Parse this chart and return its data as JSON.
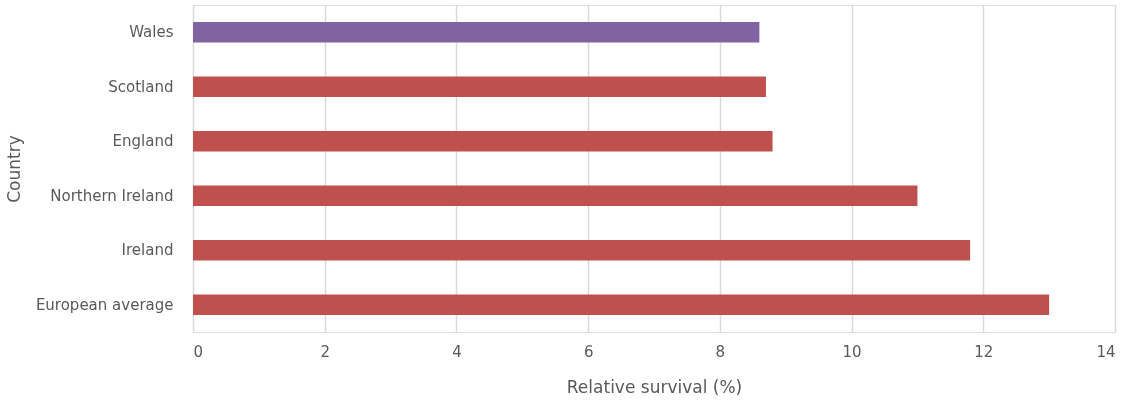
{
  "chart_data": {
    "type": "bar",
    "orientation": "horizontal",
    "xlabel": "Relative survival (%)",
    "ylabel": "Country",
    "categories": [
      "Wales",
      "Scotland",
      "England",
      "Northern Ireland",
      "Ireland",
      "European average"
    ],
    "values": [
      8.6,
      8.7,
      8.8,
      11.0,
      11.8,
      13.0
    ],
    "colors": [
      "#8064a2",
      "#c0504d",
      "#c0504d",
      "#c0504d",
      "#c0504d",
      "#c0504d"
    ],
    "xlim": [
      0,
      14
    ],
    "xticks": [
      0,
      2,
      4,
      6,
      8,
      10,
      12,
      14
    ],
    "grid": "x"
  }
}
